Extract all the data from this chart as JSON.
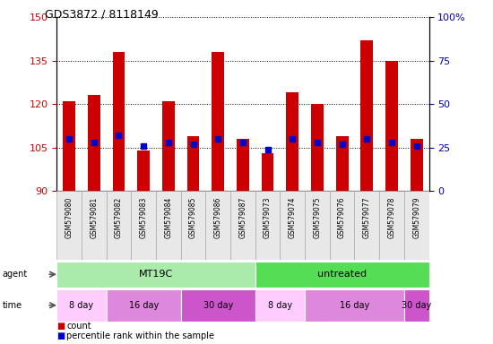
{
  "title": "GDS3872 / 8118149",
  "samples": [
    "GSM579080",
    "GSM579081",
    "GSM579082",
    "GSM579083",
    "GSM579084",
    "GSM579085",
    "GSM579086",
    "GSM579087",
    "GSM579073",
    "GSM579074",
    "GSM579075",
    "GSM579076",
    "GSM579077",
    "GSM579078",
    "GSM579079"
  ],
  "counts": [
    121,
    123,
    138,
    104,
    121,
    109,
    138,
    108,
    103,
    124,
    120,
    109,
    142,
    135,
    108
  ],
  "percentiles": [
    30,
    28,
    32,
    26,
    28,
    27,
    30,
    28,
    24,
    30,
    28,
    27,
    30,
    28,
    26
  ],
  "ymin": 90,
  "ymax": 150,
  "yticks": [
    90,
    105,
    120,
    135,
    150
  ],
  "y2min": 0,
  "y2max": 100,
  "y2ticks": [
    0,
    25,
    50,
    75,
    100
  ],
  "bar_color": "#cc0000",
  "dot_color": "#0000cc",
  "agent_groups": [
    {
      "label": "MT19C",
      "start": 0,
      "end": 7,
      "color": "#aaeaaa"
    },
    {
      "label": "untreated",
      "start": 8,
      "end": 14,
      "color": "#55dd55"
    }
  ],
  "time_groups": [
    {
      "label": "8 day",
      "start": 0,
      "end": 1,
      "color": "#ffccff"
    },
    {
      "label": "16 day",
      "start": 2,
      "end": 4,
      "color": "#dd88dd"
    },
    {
      "label": "30 day",
      "start": 5,
      "end": 7,
      "color": "#cc55cc"
    },
    {
      "label": "8 day",
      "start": 8,
      "end": 9,
      "color": "#ffccff"
    },
    {
      "label": "16 day",
      "start": 10,
      "end": 13,
      "color": "#dd88dd"
    },
    {
      "label": "30 day",
      "start": 14,
      "end": 14,
      "color": "#cc55cc"
    }
  ],
  "tick_color_left": "#cc0000",
  "tick_color_right": "#0000bb"
}
